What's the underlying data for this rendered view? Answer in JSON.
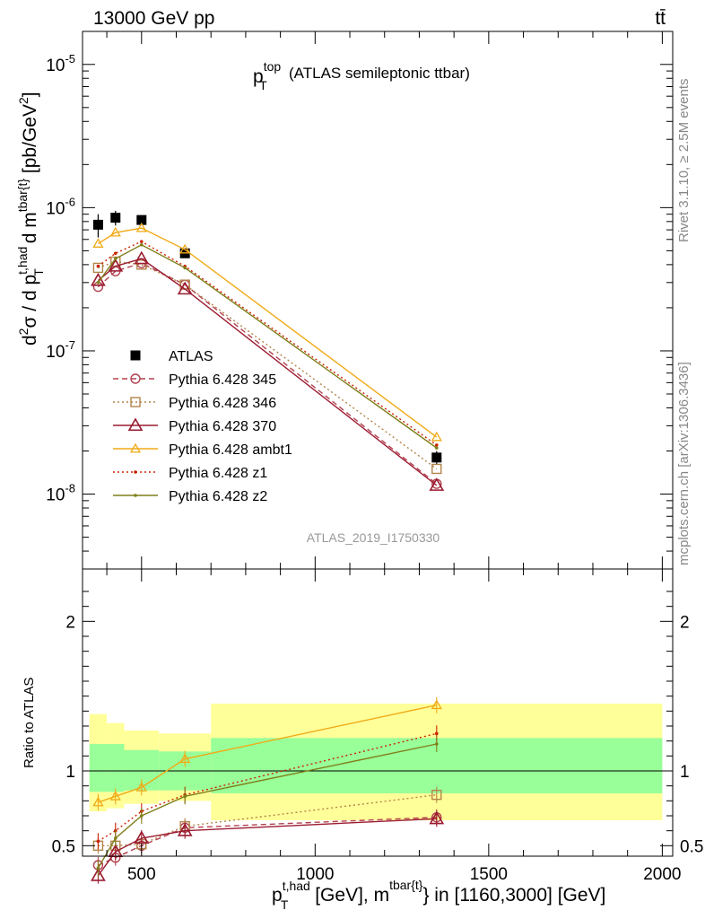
{
  "header": {
    "left": "13000 GeV pp",
    "right": "tt̄"
  },
  "plot_title": {
    "main": "p",
    "sup": "top",
    "sub": "T",
    "suffix": "(ATLAS semileptonic ttbar)"
  },
  "analysis_id": "ATLAS_2019_I1750330",
  "side_text": {
    "rivet": "Rivet 3.1.10, ≥ 2.5M events",
    "mcplots": "mcplots.cern.ch [arXiv:1306.3436]"
  },
  "ylabel_main": "d²σ / d p_T^{t,had} d m^{tbar{t}} [pb/GeV²]",
  "ylabel_ratio": "Ratio to ATLAS",
  "xlabel": "p_T^{t,had} [GeV], m^{tbar{t}} in [1160,3000] [GeV]",
  "colors": {
    "band_green": "#99ff99",
    "band_yellow": "#ffff99",
    "ATLAS": "#000000",
    "p345": "#b2414f",
    "p346": "#b2844a",
    "p370": "#9b1b30",
    "ambt1": "#f0aa17",
    "z1": "#cc2200",
    "z2": "#7f7f1a"
  },
  "chart_data": [
    {
      "type": "scatter",
      "panel": "main",
      "yscale": "log",
      "xlim": [
        330,
        2030
      ],
      "ylim": [
        3e-09,
        1.7e-05
      ],
      "x_ticks": [
        "500",
        "1000",
        "1500",
        "2000"
      ],
      "y_ticks": [
        "10^{-8}",
        "10^{-7}",
        "10^{-6}",
        "10^{-5}"
      ],
      "bin_edges": [
        350,
        400,
        450,
        550,
        700,
        2000
      ],
      "x": [
        375,
        425,
        500,
        625,
        1350
      ],
      "series": [
        {
          "name": "ATLAS",
          "key": "ATLAS",
          "marker": "square",
          "line": "none",
          "values": [
            7.6e-07,
            8.5e-07,
            8.2e-07,
            4.8e-07,
            1.8e-08
          ],
          "errors": [
            1.4e-07,
            1e-07,
            6e-08,
            3e-08,
            2e-09
          ]
        },
        {
          "name": "Pythia 6.428 345",
          "key": "p345",
          "marker": "circle",
          "line": "dashed",
          "values": [
            2.8e-07,
            3.6e-07,
            4.1e-07,
            2.9e-07,
            1.18e-08
          ]
        },
        {
          "name": "Pythia 6.428 346",
          "key": "p346",
          "marker": "square-open",
          "line": "dotted",
          "values": [
            3.8e-07,
            4.2e-07,
            4e-07,
            2.9e-07,
            1.5e-08
          ]
        },
        {
          "name": "Pythia 6.428 370",
          "key": "p370",
          "marker": "triangle-open",
          "line": "solid",
          "values": [
            3.1e-07,
            3.9e-07,
            4.4e-07,
            2.7e-07,
            1.15e-08
          ]
        },
        {
          "name": "Pythia 6.428 ambt1",
          "key": "ambt1",
          "marker": "triangle-small",
          "line": "solid",
          "values": [
            5.6e-07,
            6.7e-07,
            7.2e-07,
            5.1e-07,
            2.5e-08
          ]
        },
        {
          "name": "Pythia 6.428 z1",
          "key": "z1",
          "marker": "dot",
          "line": "dotted",
          "values": [
            3.9e-07,
            4.8e-07,
            5.8e-07,
            3.9e-07,
            2.2e-08
          ]
        },
        {
          "name": "Pythia 6.428 z2",
          "key": "z2",
          "marker": "dot",
          "line": "solid",
          "values": [
            3e-07,
            4.4e-07,
            5.5e-07,
            3.8e-07,
            2.1e-08
          ]
        }
      ]
    },
    {
      "type": "line",
      "panel": "ratio",
      "xlim": [
        330,
        2030
      ],
      "ylim": [
        0.43,
        2.35
      ],
      "y_ticks": [
        "0.5",
        "1",
        "2"
      ],
      "x": [
        375,
        425,
        500,
        625,
        1350
      ],
      "bands": {
        "green": [
          [
            0.86,
            1.18
          ],
          [
            0.86,
            1.18
          ],
          [
            0.87,
            1.14
          ],
          [
            0.87,
            1.13
          ],
          [
            0.85,
            1.22
          ]
        ],
        "yellow": [
          [
            0.73,
            1.38
          ],
          [
            0.75,
            1.32
          ],
          [
            0.78,
            1.27
          ],
          [
            0.8,
            1.25
          ],
          [
            0.67,
            1.45
          ]
        ]
      },
      "series": [
        {
          "name": "Pythia 6.428 345",
          "key": "p345",
          "values": [
            0.37,
            0.42,
            0.5,
            0.62,
            0.69
          ]
        },
        {
          "name": "Pythia 6.428 346",
          "key": "p346",
          "values": [
            0.5,
            0.5,
            0.51,
            0.63,
            0.84
          ]
        },
        {
          "name": "Pythia 6.428 370",
          "key": "p370",
          "values": [
            0.3,
            0.46,
            0.55,
            0.6,
            0.68
          ]
        },
        {
          "name": "Pythia 6.428 ambt1",
          "key": "ambt1",
          "values": [
            0.79,
            0.83,
            0.89,
            1.08,
            1.44
          ]
        },
        {
          "name": "Pythia 6.428 z1",
          "key": "z1",
          "values": [
            0.53,
            0.6,
            0.73,
            0.84,
            1.25
          ]
        },
        {
          "name": "Pythia 6.428 z2",
          "key": "z2",
          "values": [
            0.35,
            0.55,
            0.7,
            0.83,
            1.18
          ]
        }
      ]
    }
  ]
}
